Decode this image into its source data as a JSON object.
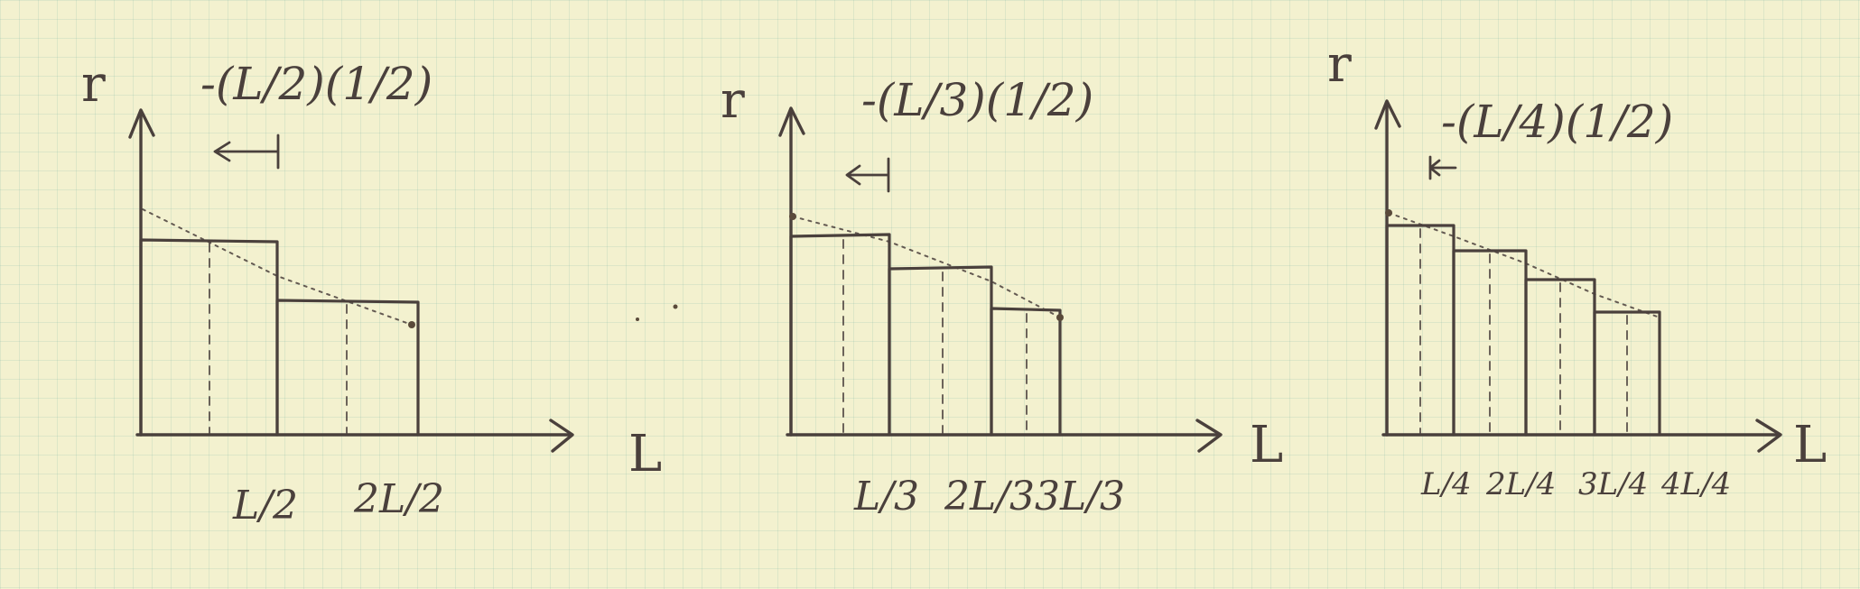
{
  "panels": [
    {
      "y_label": "r",
      "x_label": "L",
      "formula": "-(L/2)(1/2)",
      "ticks": [
        "L/2",
        "2L/2"
      ],
      "intervals": 2,
      "bar_heights": [
        0.75,
        0.5
      ]
    },
    {
      "y_label": "r",
      "x_label": "L",
      "formula": "-(L/3)(1/2)",
      "ticks": [
        "L/3",
        "2L/3",
        "3L/3"
      ],
      "intervals": 3,
      "bar_heights": [
        0.8333,
        0.6667,
        0.5
      ]
    },
    {
      "y_label": "r",
      "x_label": "L",
      "formula": "-(L/4)(1/2)",
      "ticks": [
        "L/4",
        "2L/4",
        "3L/4",
        "4L/4"
      ],
      "intervals": 4,
      "bar_heights": [
        0.875,
        0.75,
        0.625,
        0.5
      ]
    }
  ],
  "colors": {
    "paper": "#f3f1cf",
    "ink": "#4a403c",
    "grid": "#8cbeaa"
  }
}
